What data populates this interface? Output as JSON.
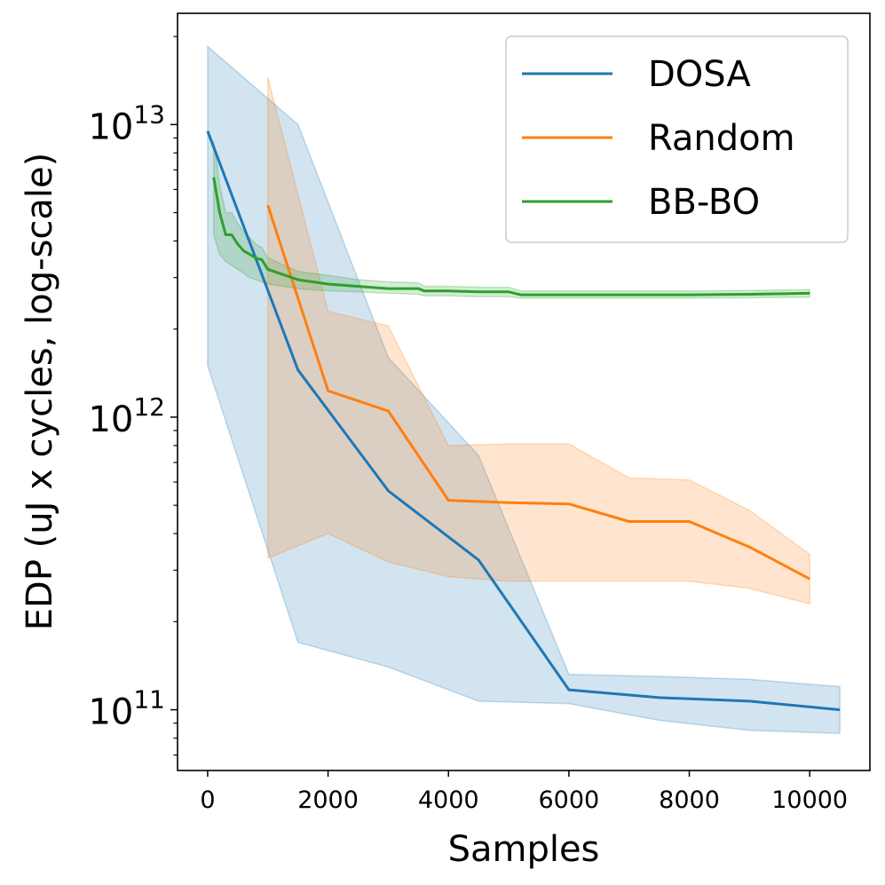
{
  "chart_data": {
    "type": "line",
    "title": "",
    "xlabel": "Samples",
    "ylabel": "EDP (uJ x cycles, log-scale)",
    "xlim": [
      -500,
      11000
    ],
    "ylim": [
      62000000000.0,
      24000000000000.0
    ],
    "yscale": "log",
    "xticks": [
      0,
      2000,
      4000,
      6000,
      8000,
      10000
    ],
    "xtick_labels": [
      "0",
      "2000",
      "4000",
      "6000",
      "8000",
      "10000"
    ],
    "yticks": [
      {
        "value": 100000000000.0,
        "base": "10",
        "exp": "11"
      },
      {
        "value": 1000000000000.0,
        "base": "10",
        "exp": "12"
      },
      {
        "value": 10000000000000.0,
        "base": "10",
        "exp": "13"
      }
    ],
    "legend_position": "upper-right",
    "series": [
      {
        "name": "DOSA",
        "color": "#1f77b4",
        "x": [
          0,
          1500,
          3000,
          4500,
          6000,
          7500,
          9000,
          10500
        ],
        "y": [
          9500000000000.0,
          1450000000000.0,
          560000000000.0,
          325000000000.0,
          117000000000.0,
          110000000000.0,
          107000000000.0,
          100000000000.0
        ],
        "lower": [
          1500000000000.0,
          170000000000.0,
          140000000000.0,
          107000000000.0,
          105000000000.0,
          92000000000.0,
          85000000000.0,
          83000000000.0
        ],
        "upper": [
          18500000000000.0,
          10000000000000.0,
          1600000000000.0,
          740000000000.0,
          132000000000.0,
          130000000000.0,
          127000000000.0,
          120000000000.0
        ]
      },
      {
        "name": "Random",
        "color": "#ff7f0e",
        "x": [
          1000,
          2000,
          3000,
          4000,
          5000,
          6000,
          7000,
          8000,
          9000,
          10000
        ],
        "y": [
          5300000000000.0,
          1230000000000.0,
          1050000000000.0,
          520000000000.0,
          510000000000.0,
          505000000000.0,
          440000000000.0,
          440000000000.0,
          360000000000.0,
          280000000000.0
        ],
        "lower": [
          330000000000.0,
          400000000000.0,
          320000000000.0,
          285000000000.0,
          275000000000.0,
          275000000000.0,
          275000000000.0,
          275000000000.0,
          260000000000.0,
          230000000000.0
        ],
        "upper": [
          14500000000000.0,
          2300000000000.0,
          2050000000000.0,
          800000000000.0,
          810000000000.0,
          810000000000.0,
          620000000000.0,
          610000000000.0,
          480000000000.0,
          340000000000.0
        ]
      },
      {
        "name": "BB-BO",
        "color": "#2ca02c",
        "x": [
          100,
          200,
          300,
          400,
          500,
          600,
          700,
          800,
          900,
          1000,
          1500,
          2000,
          2500,
          3000,
          3500,
          3600,
          4000,
          4500,
          5000,
          5200,
          6000,
          7000,
          8000,
          9000,
          10000
        ],
        "y": [
          6600000000000.0,
          5000000000000.0,
          4200000000000.0,
          4200000000000.0,
          3900000000000.0,
          3700000000000.0,
          3600000000000.0,
          3500000000000.0,
          3450000000000.0,
          3200000000000.0,
          2950000000000.0,
          2850000000000.0,
          2800000000000.0,
          2750000000000.0,
          2750000000000.0,
          2700000000000.0,
          2700000000000.0,
          2680000000000.0,
          2680000000000.0,
          2620000000000.0,
          2620000000000.0,
          2620000000000.0,
          2620000000000.0,
          2630000000000.0,
          2650000000000.0
        ],
        "lower": [
          4200000000000.0,
          3600000000000.0,
          3400000000000.0,
          3300000000000.0,
          3200000000000.0,
          3100000000000.0,
          3000000000000.0,
          2950000000000.0,
          2900000000000.0,
          2850000000000.0,
          2750000000000.0,
          2700000000000.0,
          2680000000000.0,
          2650000000000.0,
          2630000000000.0,
          2600000000000.0,
          2600000000000.0,
          2580000000000.0,
          2580000000000.0,
          2550000000000.0,
          2550000000000.0,
          2550000000000.0,
          2550000000000.0,
          2560000000000.0,
          2570000000000.0
        ],
        "upper": [
          8800000000000.0,
          6200000000000.0,
          5000000000000.0,
          5000000000000.0,
          4600000000000.0,
          4300000000000.0,
          4100000000000.0,
          3900000000000.0,
          3800000000000.0,
          3500000000000.0,
          3150000000000.0,
          3050000000000.0,
          2950000000000.0,
          2900000000000.0,
          2880000000000.0,
          2800000000000.0,
          2800000000000.0,
          2780000000000.0,
          2780000000000.0,
          2700000000000.0,
          2700000000000.0,
          2700000000000.0,
          2700000000000.0,
          2710000000000.0,
          2730000000000.0
        ]
      }
    ]
  }
}
